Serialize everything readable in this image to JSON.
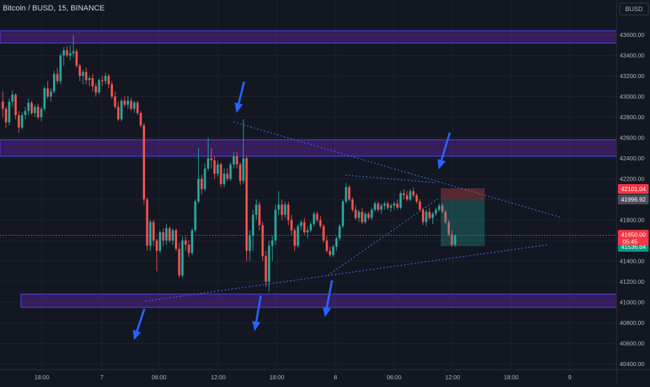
{
  "title": "Bitcoin / BUSD, 15, BINANCE",
  "currency": "BUSD",
  "chart_data": {
    "type": "candlestick",
    "ylim": [
      40300,
      43800
    ],
    "y_ticks": [
      "43600.00",
      "43400.00",
      "43200.00",
      "43000.00",
      "42800.00",
      "42600.00",
      "42400.00",
      "42200.00",
      "42000.00",
      "41800.00",
      "41600.00",
      "41400.00",
      "41200.00",
      "41000.00",
      "40800.00",
      "40600.00",
      "40400.00"
    ],
    "x_ticks": [
      "18:00",
      "7",
      "06:00",
      "12:00",
      "18:00",
      "8",
      "06:00",
      "12:00",
      "18:00",
      "9"
    ],
    "price_labels": {
      "high_label": "42101.04",
      "mid_label": "41996.92",
      "last_price": "41650.00",
      "countdown": "05:45",
      "low_label": "41536.64"
    },
    "zones": [
      {
        "from": 43520,
        "to": 43640
      },
      {
        "from": 42420,
        "to": 42580
      },
      {
        "from": 40950,
        "to": 41080
      }
    ],
    "candles": [
      [
        42950,
        43050,
        42800,
        42880
      ],
      [
        42880,
        42900,
        42700,
        42750
      ],
      [
        42750,
        42980,
        42720,
        42950
      ],
      [
        42950,
        43060,
        42900,
        43020
      ],
      [
        43020,
        43030,
        42780,
        42820
      ],
      [
        42820,
        42860,
        42650,
        42700
      ],
      [
        42700,
        42850,
        42680,
        42820
      ],
      [
        42820,
        42900,
        42780,
        42860
      ],
      [
        42860,
        42980,
        42820,
        42940
      ],
      [
        42940,
        42960,
        42820,
        42840
      ],
      [
        42840,
        42920,
        42800,
        42900
      ],
      [
        42900,
        42930,
        42780,
        42800
      ],
      [
        42800,
        42900,
        42760,
        42880
      ],
      [
        42880,
        43100,
        42860,
        43080
      ],
      [
        43080,
        43150,
        42980,
        43000
      ],
      [
        43000,
        43080,
        42950,
        43050
      ],
      [
        43050,
        43250,
        43030,
        43220
      ],
      [
        43220,
        43280,
        43120,
        43150
      ],
      [
        43150,
        43420,
        43120,
        43400
      ],
      [
        43400,
        43480,
        43300,
        43450
      ],
      [
        43450,
        43490,
        43380,
        43400
      ],
      [
        43400,
        43500,
        43350,
        43420
      ],
      [
        43420,
        43600,
        43380,
        43440
      ],
      [
        43440,
        43460,
        43280,
        43300
      ],
      [
        43300,
        43320,
        43150,
        43200
      ],
      [
        43200,
        43260,
        43120,
        43240
      ],
      [
        43240,
        43280,
        43120,
        43160
      ],
      [
        43160,
        43200,
        43100,
        43180
      ],
      [
        43180,
        43220,
        43050,
        43100
      ],
      [
        43100,
        43130,
        43000,
        43040
      ],
      [
        43040,
        43180,
        43020,
        43160
      ],
      [
        43160,
        43200,
        43100,
        43150
      ],
      [
        43150,
        43230,
        43120,
        43200
      ],
      [
        43200,
        43220,
        43080,
        43120
      ],
      [
        43120,
        43150,
        42980,
        43000
      ],
      [
        43000,
        43050,
        42880,
        42900
      ],
      [
        42900,
        42950,
        42760,
        42780
      ],
      [
        42780,
        42980,
        42760,
        42960
      ],
      [
        42960,
        43000,
        42900,
        42920
      ],
      [
        42920,
        43010,
        42880,
        42960
      ],
      [
        42960,
        42990,
        42860,
        42880
      ],
      [
        42880,
        42960,
        42840,
        42940
      ],
      [
        42940,
        42960,
        42820,
        42840
      ],
      [
        42840,
        42860,
        42700,
        42720
      ],
      [
        42720,
        42740,
        41950,
        42000
      ],
      [
        42000,
        42020,
        41500,
        41550
      ],
      [
        41550,
        41800,
        41500,
        41780
      ],
      [
        41780,
        41800,
        41550,
        41600
      ],
      [
        41600,
        41620,
        41300,
        41500
      ],
      [
        41500,
        41700,
        41480,
        41680
      ],
      [
        41680,
        41720,
        41550,
        41600
      ],
      [
        41600,
        41760,
        41560,
        41720
      ],
      [
        41720,
        41740,
        41580,
        41600
      ],
      [
        41600,
        41720,
        41560,
        41700
      ],
      [
        41700,
        41720,
        41500,
        41520
      ],
      [
        41520,
        41580,
        41240,
        41260
      ],
      [
        41260,
        41640,
        41240,
        41600
      ],
      [
        41600,
        41640,
        41500,
        41560
      ],
      [
        41560,
        41600,
        41440,
        41480
      ],
      [
        41480,
        41720,
        41460,
        41700
      ],
      [
        41700,
        42000,
        41680,
        41980
      ],
      [
        41980,
        42500,
        41960,
        42200
      ],
      [
        42200,
        42240,
        42050,
        42100
      ],
      [
        42100,
        42350,
        42080,
        42300
      ],
      [
        42300,
        42600,
        42280,
        42400
      ],
      [
        42400,
        42500,
        42300,
        42380
      ],
      [
        42380,
        42420,
        42200,
        42250
      ],
      [
        42250,
        42380,
        42220,
        42340
      ],
      [
        42340,
        42360,
        42120,
        42150
      ],
      [
        42150,
        42300,
        42120,
        42250
      ],
      [
        42250,
        42300,
        42180,
        42200
      ],
      [
        42200,
        42360,
        42180,
        42340
      ],
      [
        42340,
        42460,
        42300,
        42420
      ],
      [
        42420,
        42460,
        42300,
        42340
      ],
      [
        42340,
        42360,
        42140,
        42180
      ],
      [
        42180,
        42780,
        42150,
        42400
      ],
      [
        42400,
        42420,
        41400,
        41500
      ],
      [
        41500,
        41700,
        41400,
        41650
      ],
      [
        41650,
        41900,
        41500,
        41850
      ],
      [
        41850,
        42000,
        41800,
        41950
      ],
      [
        41950,
        41980,
        41700,
        41750
      ],
      [
        41750,
        41780,
        41400,
        41450
      ],
      [
        41450,
        41500,
        41150,
        41200
      ],
      [
        41200,
        41600,
        41100,
        41550
      ],
      [
        41550,
        41650,
        41400,
        41600
      ],
      [
        41600,
        41950,
        41560,
        41900
      ],
      [
        41900,
        42080,
        41850,
        41950
      ],
      [
        41950,
        42000,
        41800,
        41850
      ],
      [
        41850,
        41980,
        41820,
        41950
      ],
      [
        41950,
        41980,
        41750,
        41800
      ],
      [
        41800,
        41850,
        41650,
        41700
      ],
      [
        41700,
        41720,
        41500,
        41550
      ],
      [
        41550,
        41760,
        41530,
        41740
      ],
      [
        41740,
        41800,
        41700,
        41780
      ],
      [
        41780,
        41820,
        41660,
        41680
      ],
      [
        41680,
        41740,
        41620,
        41700
      ],
      [
        41700,
        41780,
        41680,
        41760
      ],
      [
        41760,
        41880,
        41740,
        41860
      ],
      [
        41860,
        41880,
        41780,
        41800
      ],
      [
        41800,
        41840,
        41720,
        41740
      ],
      [
        41740,
        41760,
        41580,
        41600
      ],
      [
        41600,
        41640,
        41480,
        41500
      ],
      [
        41500,
        41540,
        41440,
        41460
      ],
      [
        41460,
        41560,
        41440,
        41540
      ],
      [
        41540,
        41640,
        41500,
        41620
      ],
      [
        41620,
        41760,
        41600,
        41740
      ],
      [
        41740,
        42000,
        41720,
        41980
      ],
      [
        41980,
        42160,
        41960,
        42120
      ],
      [
        42120,
        42140,
        41980,
        42000
      ],
      [
        42000,
        42020,
        41880,
        41900
      ],
      [
        41900,
        41940,
        41800,
        41820
      ],
      [
        41820,
        41900,
        41780,
        41880
      ],
      [
        41880,
        41920,
        41760,
        41780
      ],
      [
        41780,
        41880,
        41760,
        41860
      ],
      [
        41860,
        41880,
        41800,
        41820
      ],
      [
        41820,
        41920,
        41800,
        41900
      ],
      [
        41900,
        41980,
        41880,
        41960
      ],
      [
        41960,
        41980,
        41880,
        41900
      ],
      [
        41900,
        41960,
        41860,
        41940
      ],
      [
        41940,
        41980,
        41900,
        41960
      ],
      [
        41960,
        41980,
        41900,
        41920
      ],
      [
        41920,
        41960,
        41880,
        41940
      ],
      [
        41940,
        41980,
        41900,
        41960
      ],
      [
        41960,
        42000,
        41900,
        41920
      ],
      [
        41920,
        42080,
        41900,
        42060
      ],
      [
        42060,
        42100,
        42000,
        42040
      ],
      [
        42040,
        42080,
        41980,
        42000
      ],
      [
        42000,
        42100,
        41980,
        42080
      ],
      [
        42080,
        42120,
        42020,
        42040
      ],
      [
        42040,
        42060,
        41960,
        41980
      ],
      [
        41980,
        42000,
        41880,
        41900
      ],
      [
        41900,
        41920,
        41750,
        41780
      ],
      [
        41780,
        41900,
        41740,
        41880
      ],
      [
        41880,
        41920,
        41800,
        41820
      ],
      [
        41820,
        41880,
        41760,
        41860
      ],
      [
        41860,
        41920,
        41840,
        41900
      ],
      [
        41900,
        41960,
        41880,
        41940
      ],
      [
        41940,
        41960,
        41860,
        41880
      ],
      [
        41880,
        41900,
        41760,
        41780
      ],
      [
        41780,
        41800,
        41640,
        41660
      ],
      [
        41660,
        41700,
        41540,
        41560
      ],
      [
        41560,
        41660,
        41540,
        41650
      ]
    ]
  }
}
